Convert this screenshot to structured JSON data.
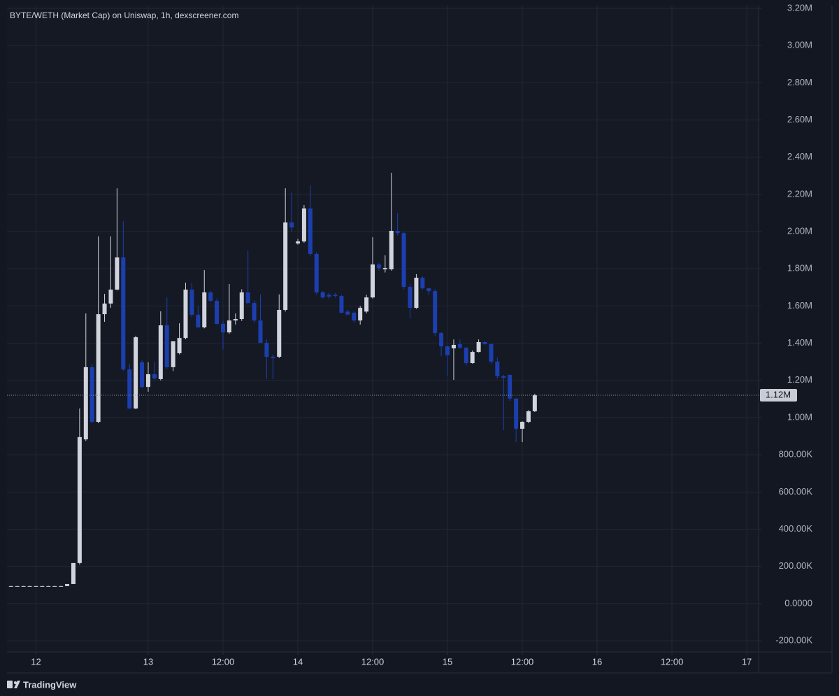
{
  "chart_data": {
    "type": "candlestick",
    "title": "BYTE/WETH (Market Cap) on Uniswap, 1h, dexscreener.com",
    "up_color": "#d1d4dc",
    "down_color": "#1c3fb0",
    "grid": true,
    "x": [
      2,
      3,
      4,
      5,
      6,
      7,
      8,
      9,
      10,
      11,
      12,
      13,
      14,
      15,
      16,
      17,
      18,
      19,
      20,
      21,
      22,
      23,
      24,
      25,
      26,
      27,
      28,
      29,
      30,
      31,
      32,
      33,
      34,
      35,
      36,
      37,
      38,
      39,
      40,
      41,
      42,
      43,
      44,
      45,
      46,
      47,
      48,
      49,
      50,
      51,
      52,
      53,
      54,
      55,
      56,
      57,
      58,
      59,
      60,
      61,
      62,
      63,
      64,
      65,
      66,
      67,
      68,
      69,
      70,
      71,
      72,
      73,
      74,
      75,
      76,
      77,
      78,
      79,
      80,
      81,
      82,
      83,
      84,
      85,
      86
    ],
    "open": [
      94000,
      94000,
      94000,
      94000,
      94000,
      94000,
      94000,
      94000,
      94000,
      94000,
      105000,
      218000,
      883000,
      1271000,
      977000,
      1556000,
      1613000,
      1688000,
      1861000,
      1259000,
      1049000,
      1297000,
      1165000,
      1233000,
      1207000,
      1496000,
      1271000,
      1346000,
      1428000,
      1688000,
      1553000,
      1485000,
      1673000,
      1628000,
      1504000,
      1458000,
      1522000,
      1530000,
      1673000,
      1616000,
      1522000,
      1402000,
      1327000,
      1327000,
      1579000,
      2049000,
      1936000,
      1947000,
      2124000,
      1880000,
      1673000,
      1660000,
      1660000,
      1654000,
      1570000,
      1564000,
      1522000,
      1570000,
      1646000,
      1823000,
      1797000,
      1797000,
      2004000,
      1992000,
      1703000,
      1590000,
      1752000,
      1695000,
      1680000,
      1455000,
      1383000,
      1372000,
      1395000,
      1376000,
      1293000,
      1353000,
      1406000,
      1395000,
      1301000,
      1222000,
      1229000,
      1102000,
      940000,
      977000,
      1034000
    ],
    "high": [
      95000,
      95000,
      95000,
      95000,
      95000,
      95000,
      95000,
      95000,
      95000,
      105000,
      218000,
      1049000,
      1560000,
      1289000,
      1974000,
      1665000,
      1974000,
      2233000,
      2056000,
      1289000,
      1440000,
      1308000,
      1297000,
      1300000,
      1571000,
      1646000,
      1410000,
      1507000,
      1725000,
      1722000,
      1600000,
      1793000,
      1680000,
      1640000,
      1520000,
      1718000,
      1560000,
      1690000,
      1898000,
      1630000,
      1662000,
      1420000,
      1340000,
      1662000,
      2233000,
      2210000,
      1960000,
      2143000,
      2248000,
      1890000,
      1680000,
      1670000,
      1670000,
      1660000,
      1580000,
      1570000,
      1600000,
      1660000,
      1970000,
      1830000,
      1872000,
      2316000,
      2100000,
      2000000,
      1720000,
      1771000,
      1760000,
      1700000,
      1690000,
      1460000,
      1390000,
      1420000,
      1420000,
      1380000,
      1360000,
      1420000,
      1410000,
      1400000,
      1323000,
      1230000,
      1232000,
      1105000,
      980000,
      1040000,
      1128000
    ],
    "low": [
      93000,
      93000,
      93000,
      93000,
      93000,
      93000,
      93000,
      93000,
      93000,
      94000,
      105000,
      210000,
      875000,
      970000,
      970000,
      1515000,
      1590000,
      1684000,
      1252000,
      1045000,
      1045000,
      1158000,
      1139000,
      1205000,
      1200000,
      1263000,
      1250000,
      1340000,
      1421000,
      1540000,
      1480000,
      1480000,
      1620000,
      1500000,
      1365000,
      1450000,
      1500000,
      1520000,
      1610000,
      1510000,
      1400000,
      1207000,
      1207000,
      1320000,
      1570000,
      2000000,
      1930000,
      1940000,
      1870000,
      1660000,
      1640000,
      1640000,
      1645000,
      1560000,
      1550000,
      1510000,
      1500000,
      1560000,
      1640000,
      1790000,
      1780000,
      1790000,
      1980000,
      1690000,
      1534000,
      1585000,
      1690000,
      1660000,
      1440000,
      1330000,
      1225000,
      1203000,
      1370000,
      1280000,
      1290000,
      1350000,
      1390000,
      1290000,
      1210000,
      932000,
      1090000,
      868000,
      868000,
      970000,
      1030000
    ],
    "close": [
      94000,
      94000,
      94000,
      94000,
      94000,
      94000,
      94000,
      94000,
      94000,
      105000,
      218000,
      895000,
      1271000,
      977000,
      1556000,
      1613000,
      1688000,
      1861000,
      1259000,
      1049000,
      1432000,
      1165000,
      1233000,
      1210000,
      1496000,
      1271000,
      1410000,
      1428000,
      1688000,
      1553000,
      1485000,
      1673000,
      1628000,
      1504000,
      1458000,
      1522000,
      1530000,
      1673000,
      1616000,
      1522000,
      1402000,
      1327000,
      1320000,
      1579000,
      2049000,
      2022000,
      1947000,
      2124000,
      1880000,
      1673000,
      1646000,
      1650000,
      1654000,
      1564000,
      1554000,
      1522000,
      1590000,
      1646000,
      1823000,
      1804000,
      1804000,
      2004000,
      1992000,
      1703000,
      1590000,
      1752000,
      1695000,
      1680000,
      1455000,
      1383000,
      1335000,
      1391000,
      1376000,
      1293000,
      1353000,
      1406000,
      1395000,
      1301000,
      1222000,
      1214000,
      1102000,
      940000,
      977000,
      1034000,
      1120000
    ],
    "xlim": [
      1.35,
      121.9
    ],
    "xticks": [
      {
        "value": 6,
        "label": "12"
      },
      {
        "value": 24,
        "label": "13"
      },
      {
        "value": 36,
        "label": "12:00"
      },
      {
        "value": 48,
        "label": "14"
      },
      {
        "value": 60,
        "label": "12:00"
      },
      {
        "value": 72,
        "label": "15"
      },
      {
        "value": 84,
        "label": "12:00"
      },
      {
        "value": 96,
        "label": "16"
      },
      {
        "value": 108,
        "label": "12:00"
      },
      {
        "value": 120,
        "label": "17"
      }
    ],
    "ylim": [
      -260000,
      3215000
    ],
    "yticks": [
      {
        "value": -200000,
        "label": "-200.00K"
      },
      {
        "value": 0,
        "label": "0.0000"
      },
      {
        "value": 200000,
        "label": "200.00K"
      },
      {
        "value": 400000,
        "label": "400.00K"
      },
      {
        "value": 600000,
        "label": "600.00K"
      },
      {
        "value": 800000,
        "label": "800.00K"
      },
      {
        "value": 1000000,
        "label": "1.00M"
      },
      {
        "value": 1200000,
        "label": "1.20M"
      },
      {
        "value": 1400000,
        "label": "1.40M"
      },
      {
        "value": 1600000,
        "label": "1.60M"
      },
      {
        "value": 1800000,
        "label": "1.80M"
      },
      {
        "value": 2000000,
        "label": "2.00M"
      },
      {
        "value": 2200000,
        "label": "2.20M"
      },
      {
        "value": 2400000,
        "label": "2.40M"
      },
      {
        "value": 2600000,
        "label": "2.60M"
      },
      {
        "value": 2800000,
        "label": "2.80M"
      },
      {
        "value": 3000000,
        "label": "3.00M"
      },
      {
        "value": 3200000,
        "label": "3.20M"
      }
    ],
    "price_line": {
      "value": 1120000,
      "label": "1.12M"
    }
  },
  "footer": {
    "brand": "TradingView"
  }
}
